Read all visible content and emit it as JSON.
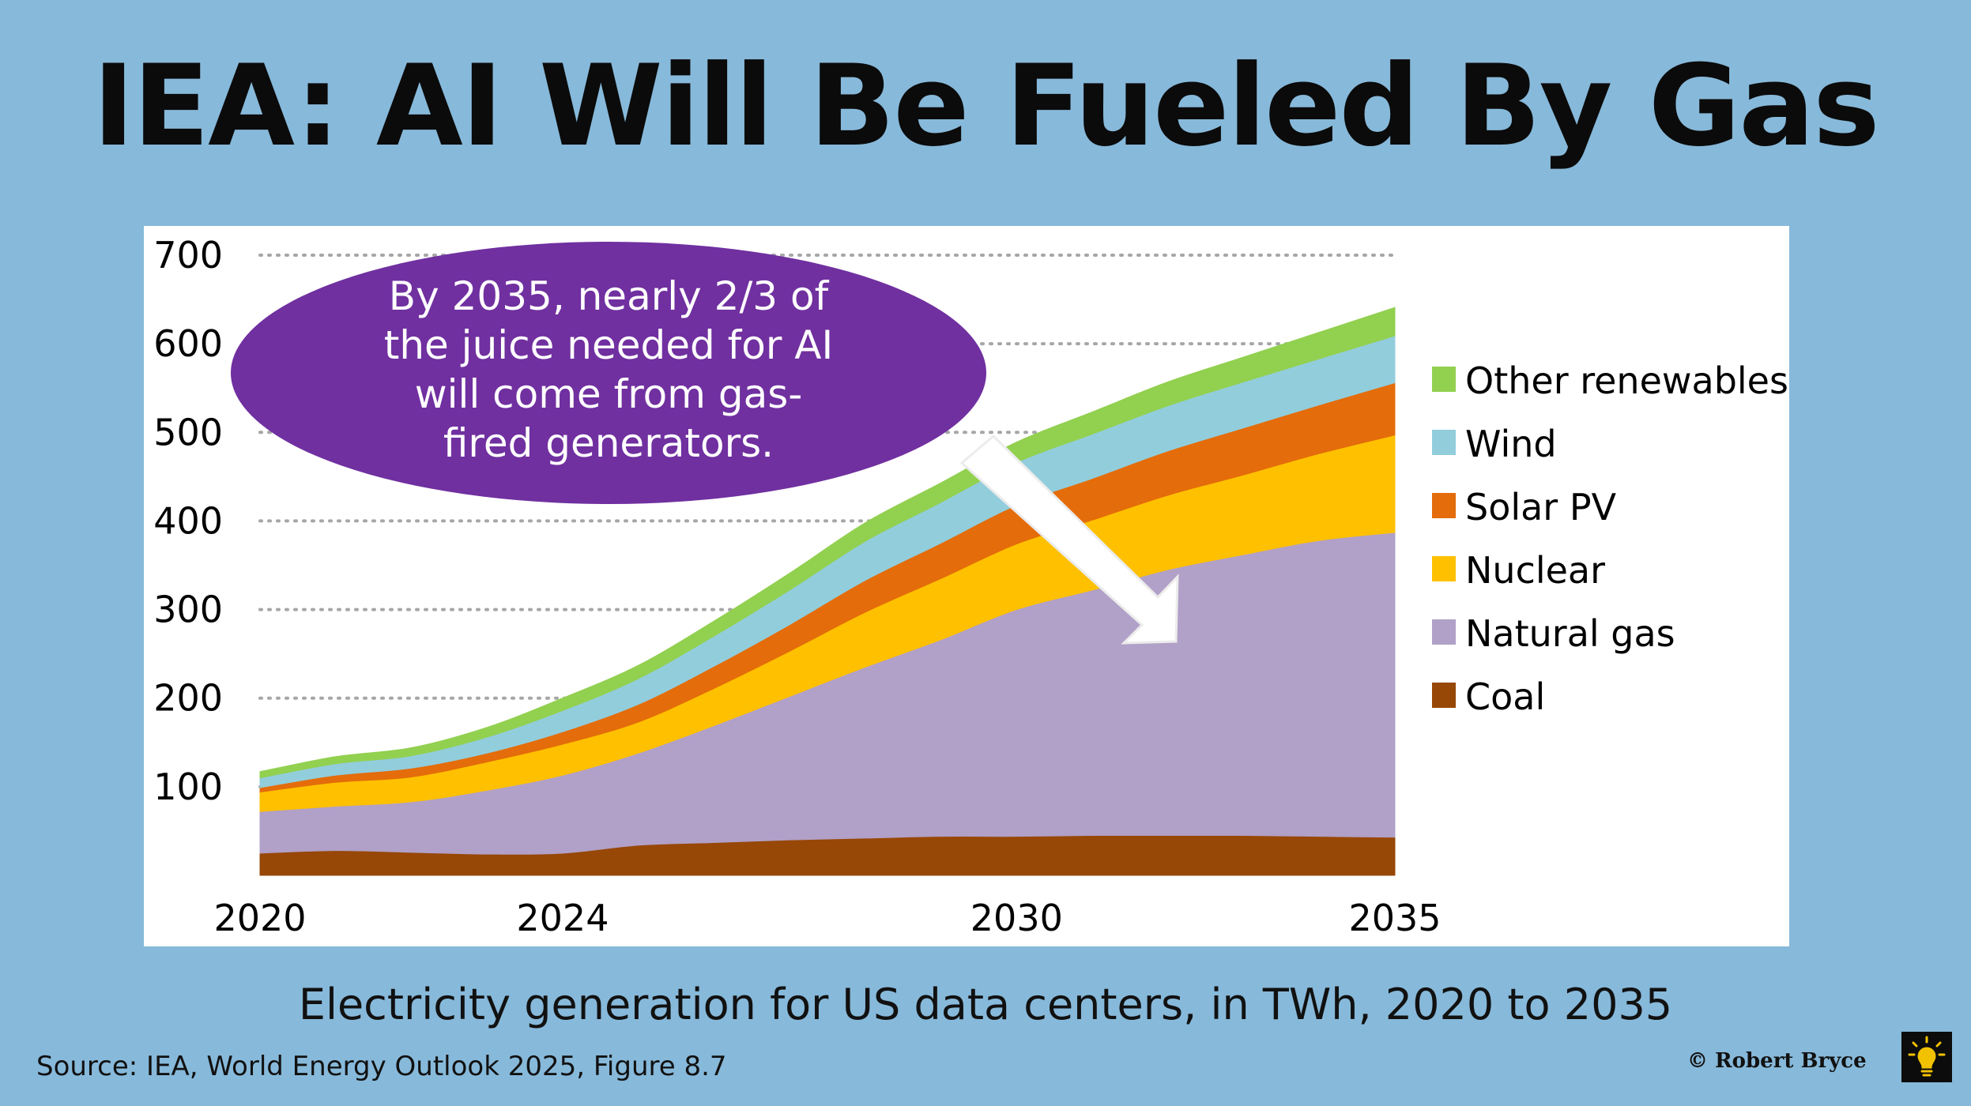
{
  "title": "IEA: AI Will Be Fueled By Gas",
  "subtitle": "Electricity generation for US data centers, in TWh, 2020 to 2035",
  "source": "Source: IEA, World Energy Outlook 2025, Figure 8.7",
  "credit": "© Robert Bryce",
  "logo_icon": "lightbulb-icon",
  "callout": {
    "lines": [
      "By 2035, nearly 2/3 of",
      "the juice needed for AI",
      "will come from gas-",
      "fired generators."
    ],
    "color": "#7030a0",
    "text_color": "#ffffff"
  },
  "arrow_icon": "arrow-down-right-icon",
  "colors": {
    "background": "#87b9da",
    "panel": "#ffffff",
    "grid": "#a6a6a6"
  },
  "chart_data": {
    "type": "area",
    "stacked": true,
    "title": "",
    "xlabel": "",
    "ylabel": "",
    "x": [
      2020,
      2021,
      2022,
      2023,
      2024,
      2025,
      2026,
      2027,
      2028,
      2029,
      2030,
      2031,
      2032,
      2033,
      2034,
      2035
    ],
    "xticks": [
      2020,
      2024,
      2030,
      2035
    ],
    "yticks": [
      100,
      200,
      300,
      400,
      500,
      600,
      700
    ],
    "ylim": [
      0,
      700
    ],
    "xlim": [
      2020,
      2035
    ],
    "grid": true,
    "legend_position": "right",
    "series": [
      {
        "name": "Coal",
        "color": "#974706",
        "values": [
          25,
          28,
          26,
          24,
          25,
          34,
          37,
          40,
          42,
          44,
          44,
          45,
          45,
          45,
          44,
          43
        ]
      },
      {
        "name": "Natural gas",
        "color": "#b1a0c7",
        "values": [
          47,
          50,
          57,
          72,
          88,
          104,
          132,
          162,
          193,
          222,
          256,
          277,
          300,
          317,
          334,
          344
        ]
      },
      {
        "name": "Nuclear",
        "color": "#ffc000",
        "values": [
          22,
          27,
          28,
          32,
          35,
          35,
          42,
          51,
          62,
          69,
          74,
          79,
          84,
          90,
          98,
          110
        ]
      },
      {
        "name": "Solar PV",
        "color": "#e46c0a",
        "values": [
          5,
          8,
          10,
          10,
          14,
          20,
          25,
          30,
          36,
          40,
          44,
          47,
          50,
          53,
          55,
          59
        ]
      },
      {
        "name": "Wind",
        "color": "#92cddc",
        "values": [
          11,
          13,
          14,
          18,
          24,
          29,
          34,
          39,
          44,
          46,
          48,
          50,
          51,
          52,
          52,
          53
        ]
      },
      {
        "name": "Other renewables",
        "color": "#92d050",
        "values": [
          7,
          8,
          9,
          11,
          14,
          15,
          17,
          19,
          21,
          22,
          23,
          25,
          27,
          28,
          30,
          32
        ]
      }
    ],
    "legend_order": [
      "Other renewables",
      "Wind",
      "Solar PV",
      "Nuclear",
      "Natural gas",
      "Coal"
    ]
  }
}
